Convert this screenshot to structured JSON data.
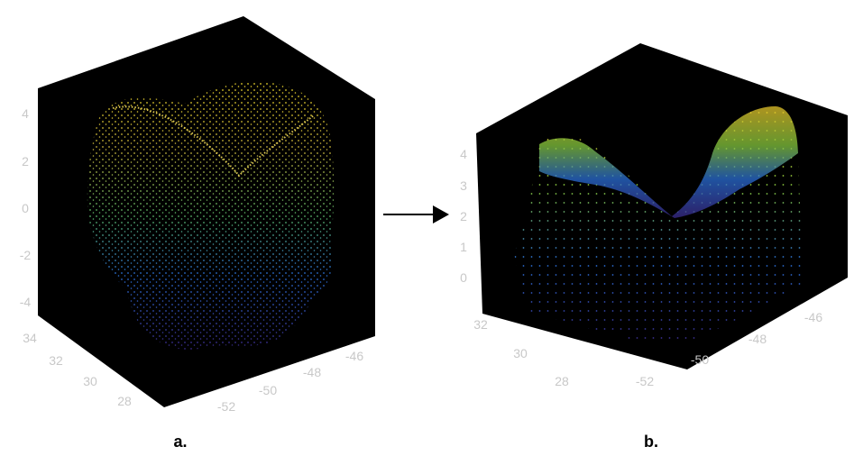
{
  "panels": [
    {
      "caption": "a.",
      "z_ticks": [
        "4",
        "2",
        "0",
        "-2",
        "-4"
      ],
      "y_ticks": [
        "34",
        "32",
        "30",
        "28"
      ],
      "x_ticks": [
        "-52",
        "-50",
        "-48",
        "-46"
      ]
    },
    {
      "caption": "b.",
      "z_ticks": [
        "4",
        "3",
        "2",
        "1",
        "0"
      ],
      "y_ticks": [
        "32",
        "30",
        "28"
      ],
      "x_ticks": [
        "-52",
        "-50",
        "-48",
        "-46"
      ]
    }
  ],
  "colormap": [
    "#3b2a8c",
    "#2a6fd6",
    "#18b0a8",
    "#86c83e",
    "#e8d22a",
    "#d9902a"
  ],
  "background_color": "#000000",
  "arrow_color": "#000000"
}
